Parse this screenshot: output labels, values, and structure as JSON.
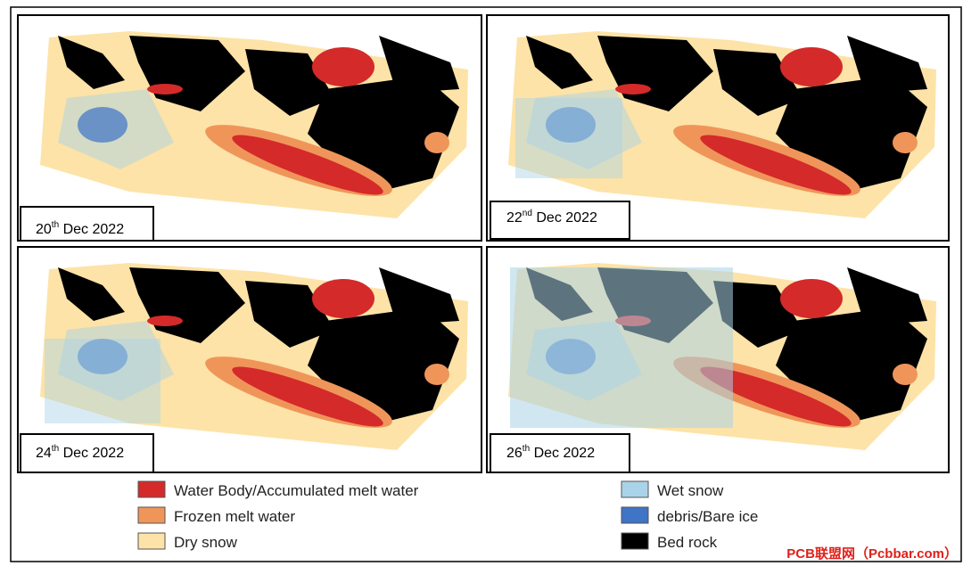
{
  "panels": [
    {
      "day": "20",
      "suffix": "th",
      "month_year": "Dec 2022"
    },
    {
      "day": "22",
      "suffix": "nd",
      "month_year": "Dec 2022"
    },
    {
      "day": "24",
      "suffix": "th",
      "month_year": "Dec 2022"
    },
    {
      "day": "26",
      "suffix": "th",
      "month_year": "Dec 2022"
    }
  ],
  "legend": [
    {
      "label": "Water Body/Accumulated melt water",
      "color": "#d42a2a"
    },
    {
      "label": "Frozen melt water",
      "color": "#f0955a"
    },
    {
      "label": "Dry snow",
      "color": "#fde3a7"
    },
    {
      "label": "Wet snow",
      "color": "#a9d3e8"
    },
    {
      "label": "debris/Bare ice",
      "color": "#3f74c6"
    },
    {
      "label": "Bed rock",
      "color": "#000000"
    }
  ],
  "watermark": "PCB联盟网（Pcbbar.com）"
}
